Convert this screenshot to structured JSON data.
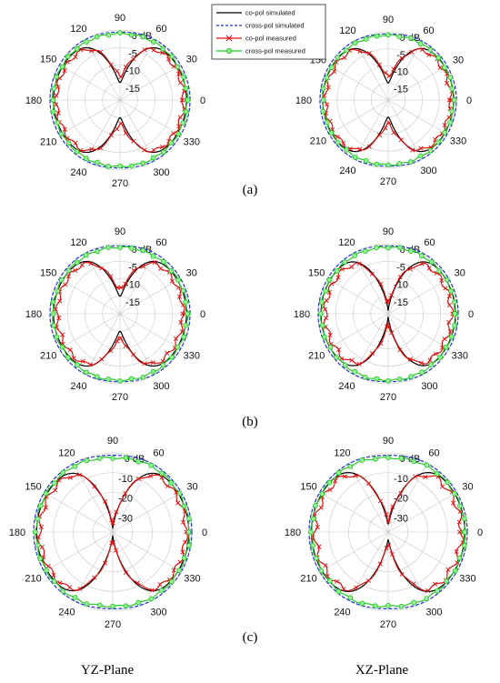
{
  "angle_ticks": [
    "0",
    "30",
    "60",
    "90",
    "120",
    "150",
    "180",
    "210",
    "240",
    "270",
    "300",
    "330"
  ],
  "plane_labels": [
    "YZ-Plane",
    "XZ-Plane"
  ],
  "colors": {
    "co_sim": "#000000",
    "cross_sim": "#1f2fd8",
    "co_meas": "#e01010",
    "cross_meas": "#22c922",
    "grid": "#c8c8c8"
  },
  "chart_data": [
    {
      "type": "line",
      "coordinate_system": "polar",
      "panel": "(a)",
      "plane": "YZ-Plane",
      "r_ticks": [
        "0 dB",
        "-5",
        "-10",
        "-15"
      ],
      "r_range_db": [
        -20,
        0
      ],
      "legend": [
        "co-pol simulated",
        "cross-pol simulated",
        "co-pol measured",
        "cross-pol measured"
      ],
      "legend_position": "top-center",
      "series": [
        {
          "name": "co-pol simulated",
          "null_depth_db": -15,
          "front_level_db": -1.0,
          "ripple_db": 0
        },
        {
          "name": "cross-pol simulated",
          "null_depth_db": -0.6,
          "front_level_db": 0.0,
          "ripple_db": 0
        },
        {
          "name": "co-pol measured",
          "null_depth_db": -13,
          "front_level_db": -1.8,
          "ripple_db": 0.5
        },
        {
          "name": "cross-pol measured",
          "null_depth_db": -1.0,
          "front_level_db": -0.8,
          "ripple_db": 0.2
        }
      ]
    },
    {
      "type": "line",
      "coordinate_system": "polar",
      "panel": "(a)",
      "plane": "XZ-Plane",
      "r_ticks": [
        "0 dB",
        "-5",
        "-10",
        "-15"
      ],
      "r_range_db": [
        -20,
        0
      ],
      "series": [
        {
          "name": "co-pol simulated",
          "null_depth_db": -15,
          "front_level_db": -0.8,
          "ripple_db": 0
        },
        {
          "name": "cross-pol simulated",
          "null_depth_db": -0.6,
          "front_level_db": 0.0,
          "ripple_db": 0
        },
        {
          "name": "co-pol measured",
          "null_depth_db": -13,
          "front_level_db": -1.6,
          "ripple_db": 0.5
        },
        {
          "name": "cross-pol measured",
          "null_depth_db": -1.0,
          "front_level_db": -0.8,
          "ripple_db": 0.2
        }
      ]
    },
    {
      "type": "line",
      "coordinate_system": "polar",
      "panel": "(b)",
      "plane": "YZ-Plane",
      "r_ticks": [
        "0 dB",
        "-5",
        "-10",
        "-15"
      ],
      "r_range_db": [
        -20,
        0
      ],
      "series": [
        {
          "name": "co-pol simulated",
          "null_depth_db": -15,
          "front_level_db": -1.0,
          "ripple_db": 0
        },
        {
          "name": "cross-pol simulated",
          "null_depth_db": -0.6,
          "front_level_db": 0.0,
          "ripple_db": 0
        },
        {
          "name": "co-pol measured",
          "null_depth_db": -13,
          "front_level_db": -2.0,
          "ripple_db": 0.5
        },
        {
          "name": "cross-pol measured",
          "null_depth_db": -1.0,
          "front_level_db": -0.8,
          "ripple_db": 0.2
        }
      ]
    },
    {
      "type": "line",
      "coordinate_system": "polar",
      "panel": "(b)",
      "plane": "XZ-Plane",
      "r_ticks": [
        "0 dB",
        "-5",
        "-10",
        "-15"
      ],
      "r_range_db": [
        -20,
        0
      ],
      "series": [
        {
          "name": "co-pol simulated",
          "null_depth_db": -19,
          "front_level_db": -0.8,
          "ripple_db": 0
        },
        {
          "name": "cross-pol simulated",
          "null_depth_db": -0.6,
          "front_level_db": 0.0,
          "ripple_db": 0
        },
        {
          "name": "co-pol measured",
          "null_depth_db": -17,
          "front_level_db": -2.0,
          "ripple_db": 0.6
        },
        {
          "name": "cross-pol measured",
          "null_depth_db": -1.0,
          "front_level_db": -0.8,
          "ripple_db": 0.2
        }
      ]
    },
    {
      "type": "line",
      "coordinate_system": "polar",
      "panel": "(c)",
      "plane": "YZ-Plane",
      "r_ticks": [
        "0 dB",
        "-10",
        "-20",
        "-30"
      ],
      "r_range_db": [
        -40,
        0
      ],
      "series": [
        {
          "name": "co-pol simulated",
          "null_depth_db": -38,
          "front_level_db": -1.5,
          "ripple_db": 0
        },
        {
          "name": "cross-pol simulated",
          "null_depth_db": -1.2,
          "front_level_db": 0.0,
          "ripple_db": 0
        },
        {
          "name": "co-pol measured",
          "null_depth_db": -36,
          "front_level_db": -3.0,
          "ripple_db": 1.0
        },
        {
          "name": "cross-pol measured",
          "null_depth_db": -2.5,
          "front_level_db": -1.2,
          "ripple_db": 0.4
        }
      ]
    },
    {
      "type": "line",
      "coordinate_system": "polar",
      "panel": "(c)",
      "plane": "XZ-Plane",
      "r_ticks": [
        "0 dB",
        "-10",
        "-20",
        "-30"
      ],
      "r_range_db": [
        -40,
        0
      ],
      "series": [
        {
          "name": "co-pol simulated",
          "null_depth_db": -36,
          "front_level_db": -1.2,
          "ripple_db": 0
        },
        {
          "name": "cross-pol simulated",
          "null_depth_db": -1.2,
          "front_level_db": 0.0,
          "ripple_db": 0
        },
        {
          "name": "co-pol measured",
          "null_depth_db": -34,
          "front_level_db": -3.0,
          "ripple_db": 1.2
        },
        {
          "name": "cross-pol measured",
          "null_depth_db": -2.5,
          "front_level_db": -1.2,
          "ripple_db": 0.4
        }
      ]
    }
  ]
}
